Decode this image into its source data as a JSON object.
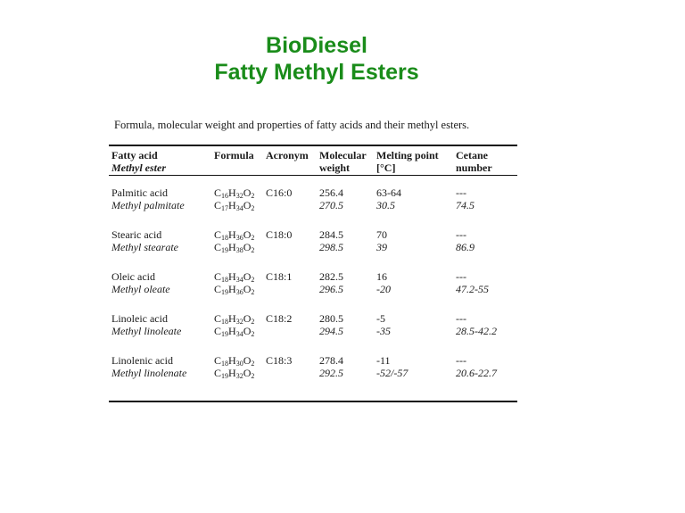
{
  "title": {
    "line1": "BioDiesel",
    "line2": "Fatty Methyl Esters"
  },
  "caption": "Formula, molecular weight and properties of fatty acids and their methyl esters.",
  "table": {
    "headers": {
      "fatty_acid": "Fatty acid",
      "methyl_ester": "Methyl ester",
      "formula": "Formula",
      "acronym": "Acronym",
      "molecular": "Molecular",
      "weight": "weight",
      "melting": "Melting point",
      "melting_unit": "[°C]",
      "cetane": "Cetane",
      "number": "number"
    },
    "rows": [
      {
        "acid": "Palmitic acid",
        "ester": "Methyl palmitate",
        "acid_formula": [
          [
            "C",
            "16"
          ],
          [
            "H",
            "32"
          ],
          [
            "O",
            "2"
          ]
        ],
        "ester_formula": [
          [
            "C",
            "17"
          ],
          [
            "H",
            "34"
          ],
          [
            "O",
            "2"
          ]
        ],
        "acronym": "C16:0",
        "acid_mw": "256.4",
        "ester_mw": "270.5",
        "acid_mp": "63-64",
        "ester_mp": "30.5",
        "acid_cetane": "---",
        "ester_cetane": "74.5"
      },
      {
        "acid": "Stearic acid",
        "ester": "Methyl stearate",
        "acid_formula": [
          [
            "C",
            "18"
          ],
          [
            "H",
            "36"
          ],
          [
            "O",
            "2"
          ]
        ],
        "ester_formula": [
          [
            "C",
            "19"
          ],
          [
            "H",
            "38"
          ],
          [
            "O",
            "2"
          ]
        ],
        "acronym": "C18:0",
        "acid_mw": "284.5",
        "ester_mw": "298.5",
        "acid_mp": "70",
        "ester_mp": "39",
        "acid_cetane": "---",
        "ester_cetane": "86.9"
      },
      {
        "acid": "Oleic acid",
        "ester": "Methyl oleate",
        "acid_formula": [
          [
            "C",
            "18"
          ],
          [
            "H",
            "34"
          ],
          [
            "O",
            "2"
          ]
        ],
        "ester_formula": [
          [
            "C",
            "19"
          ],
          [
            "H",
            "36"
          ],
          [
            "O",
            "2"
          ]
        ],
        "acronym": "C18:1",
        "acid_mw": "282.5",
        "ester_mw": "296.5",
        "acid_mp": "16",
        "ester_mp": "-20",
        "acid_cetane": "---",
        "ester_cetane": "47.2-55"
      },
      {
        "acid": "Linoleic acid",
        "ester": "Methyl linoleate",
        "acid_formula": [
          [
            "C",
            "18"
          ],
          [
            "H",
            "32"
          ],
          [
            "O",
            "2"
          ]
        ],
        "ester_formula": [
          [
            "C",
            "19"
          ],
          [
            "H",
            "34"
          ],
          [
            "O",
            "2"
          ]
        ],
        "acronym": "C18:2",
        "acid_mw": "280.5",
        "ester_mw": "294.5",
        "acid_mp": "-5",
        "ester_mp": "-35",
        "acid_cetane": "---",
        "ester_cetane": "28.5-42.2"
      },
      {
        "acid": "Linolenic acid",
        "ester": "Methyl linolenate",
        "acid_formula": [
          [
            "C",
            "18"
          ],
          [
            "H",
            "30"
          ],
          [
            "O",
            "2"
          ]
        ],
        "ester_formula": [
          [
            "C",
            "19"
          ],
          [
            "H",
            "32"
          ],
          [
            "O",
            "2"
          ]
        ],
        "acronym": "C18:3",
        "acid_mw": "278.4",
        "ester_mw": "292.5",
        "acid_mp": "-11",
        "ester_mp": "-52/-57",
        "acid_cetane": "---",
        "ester_cetane": "20.6-22.7"
      }
    ]
  }
}
